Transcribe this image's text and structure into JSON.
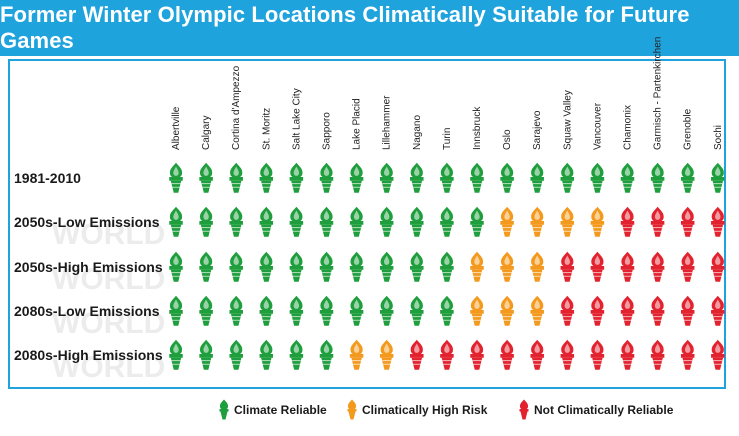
{
  "title": "Former Winter Olympic Locations Climatically Suitable for Future Games",
  "colors": {
    "reliable": "#1e9e3c",
    "high_risk": "#f39a1e",
    "not_reliable": "#e2232f",
    "accent": "#1fa3dd"
  },
  "watermark_text": "WORLD",
  "chart_data": {
    "type": "table",
    "title": "Former Winter Olympic Locations Climatically Suitable for Future Games",
    "columns": [
      "Albertville",
      "Calgary",
      "Cortina d'Ampezzo",
      "St. Moritz",
      "Salt Lake City",
      "Sapporo",
      "Lake Placid",
      "Lillehammer",
      "Nagano",
      "Turin",
      "Innsbruck",
      "Oslo",
      "Sarajevo",
      "Squaw Valley",
      "Vancouver",
      "Chamonix",
      "Garmisch - Partenkirchen",
      "Grenoble",
      "Sochi"
    ],
    "rows": [
      {
        "label": "1981-2010",
        "values": [
          "R",
          "R",
          "R",
          "R",
          "R",
          "R",
          "R",
          "R",
          "R",
          "R",
          "R",
          "R",
          "R",
          "R",
          "R",
          "R",
          "R",
          "R",
          "R"
        ]
      },
      {
        "label": "2050s-Low Emissions",
        "values": [
          "R",
          "R",
          "R",
          "R",
          "R",
          "R",
          "R",
          "R",
          "R",
          "R",
          "R",
          "H",
          "H",
          "H",
          "H",
          "N",
          "N",
          "N",
          "N"
        ]
      },
      {
        "label": "2050s-High Emissions",
        "values": [
          "R",
          "R",
          "R",
          "R",
          "R",
          "R",
          "R",
          "R",
          "R",
          "R",
          "H",
          "H",
          "H",
          "N",
          "N",
          "N",
          "N",
          "N",
          "N"
        ]
      },
      {
        "label": "2080s-Low Emissions",
        "values": [
          "R",
          "R",
          "R",
          "R",
          "R",
          "R",
          "R",
          "R",
          "R",
          "R",
          "H",
          "H",
          "H",
          "N",
          "N",
          "N",
          "N",
          "N",
          "N"
        ]
      },
      {
        "label": "2080s-High Emissions",
        "values": [
          "R",
          "R",
          "R",
          "R",
          "R",
          "R",
          "H",
          "H",
          "N",
          "N",
          "N",
          "N",
          "N",
          "N",
          "N",
          "N",
          "N",
          "N",
          "N"
        ]
      }
    ],
    "legend": [
      {
        "code": "R",
        "label": "Climate Reliable"
      },
      {
        "code": "H",
        "label": "Climatically High Risk"
      },
      {
        "code": "N",
        "label": "Not Climatically  Reliable"
      }
    ]
  }
}
